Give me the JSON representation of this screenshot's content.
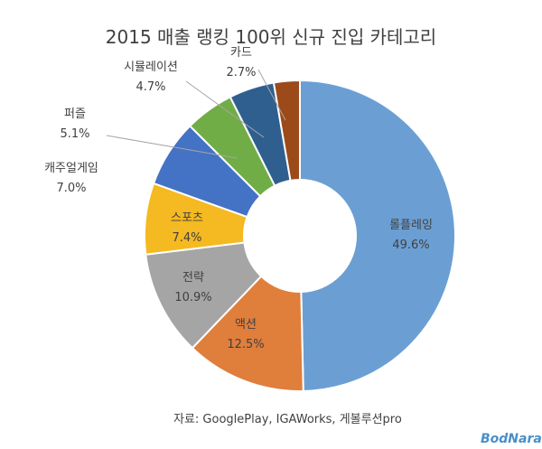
{
  "chart_data": {
    "type": "pie",
    "variant": "donut",
    "title": "2015 매출 랭킹 100위 신규 진입 카테고리",
    "categories": [
      "롤플레잉",
      "액션",
      "전략",
      "스포츠",
      "캐주얼게임",
      "퍼즐",
      "시뮬레이션",
      "카드"
    ],
    "values": [
      49.6,
      12.5,
      10.9,
      7.4,
      7.0,
      5.1,
      4.7,
      2.7
    ],
    "value_labels": [
      "49.6%",
      "12.5%",
      "10.9%",
      "7.4%",
      "7.0%",
      "5.1%",
      "4.7%",
      "2.7%"
    ],
    "colors": [
      "#6b9fd4",
      "#e07e3c",
      "#a5a5a5",
      "#f5b921",
      "#4472c4",
      "#70ad47",
      "#2f5f8f",
      "#9c4a1a"
    ],
    "legend": "none",
    "source_note": "자료: GooglePlay, IGAWorks, 게볼루션pro"
  },
  "logo": {
    "text": "BodNara"
  }
}
